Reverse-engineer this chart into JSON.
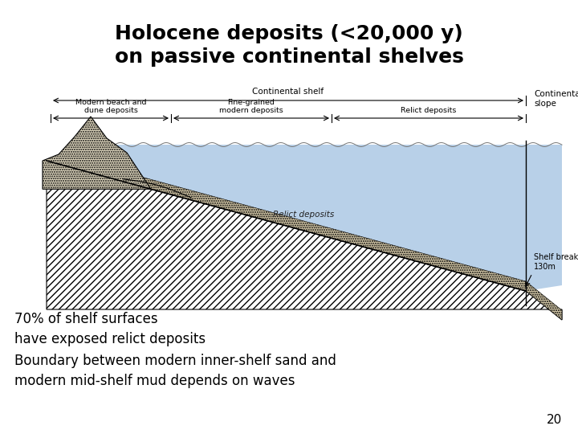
{
  "title": "Holocene deposits (<20,000 y)\non passive continental shelves",
  "title_fontsize": 18,
  "background_color": "#ffffff",
  "text_bottom_1": "70% of shelf surfaces\nhave exposed relict deposits",
  "text_bottom_2": "Boundary between modern inner-shelf sand and\nmodern mid-shelf mud depends on waves",
  "page_number": "20",
  "label_continental_shelf": "Continental shelf",
  "label_continental_slope": "Continental\nslope",
  "label_modern_beach": "Modern beach and\ndune deposits",
  "label_fine_grained": "Fine-grained\nmodern deposits",
  "label_relict_deposits": "Relict deposits",
  "label_shelf_break": "Shelf break\n130m",
  "label_relict_deposits_diagram": "Relict deposits",
  "water_color": "#b8d0e8",
  "water_edge_color": "#8aacca"
}
